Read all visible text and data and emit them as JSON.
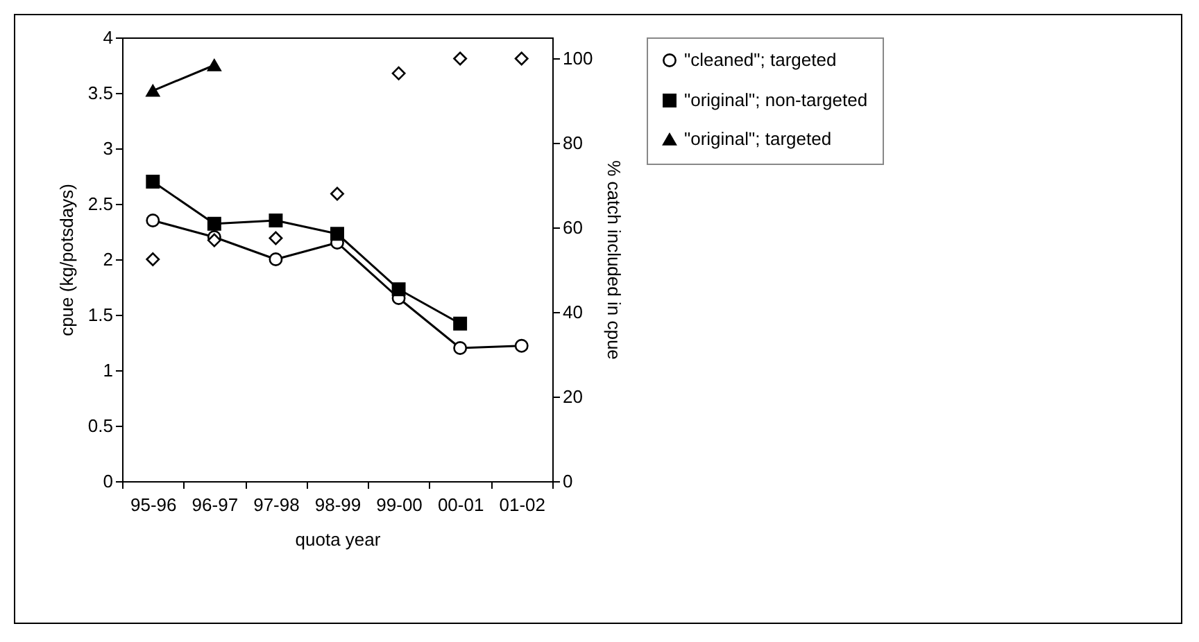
{
  "chart_data": {
    "type": "line",
    "xlabel": "quota year",
    "ylabel": "cpue (kg/potsdays)",
    "y2label": "% catch included in cpue",
    "categories": [
      "95-96",
      "96-97",
      "97-98",
      "98-99",
      "99-00",
      "00-01",
      "01-02"
    ],
    "series": [
      {
        "name": "\"cleaned\"; targeted",
        "marker": "circle",
        "color": "#000000",
        "values": [
          2.35,
          2.2,
          2.0,
          2.15,
          1.65,
          1.2,
          1.22
        ]
      },
      {
        "name": "\"original\"; non-targeted",
        "marker": "square",
        "color": "#000000",
        "values": [
          2.7,
          2.32,
          2.35,
          2.23,
          1.73,
          1.42,
          null
        ]
      },
      {
        "name": "\"original\"; targeted",
        "marker": "triangle",
        "color": "#000000",
        "values": [
          3.52,
          3.75,
          null,
          null,
          null,
          null,
          null
        ]
      },
      {
        "type": "scatter",
        "marker": "diamond",
        "color": "#000000",
        "axis": "y2",
        "values": [
          52.5,
          57,
          57.5,
          68,
          96.5,
          100,
          100
        ]
      }
    ],
    "ylim": [
      0,
      4
    ],
    "yticks": [
      0,
      0.5,
      1,
      1.5,
      2,
      2.5,
      3,
      3.5,
      4
    ],
    "y2lim": [
      0,
      105
    ],
    "y2ticks": [
      0,
      20,
      40,
      60,
      80,
      100
    ],
    "grid": false,
    "legend": "right"
  }
}
